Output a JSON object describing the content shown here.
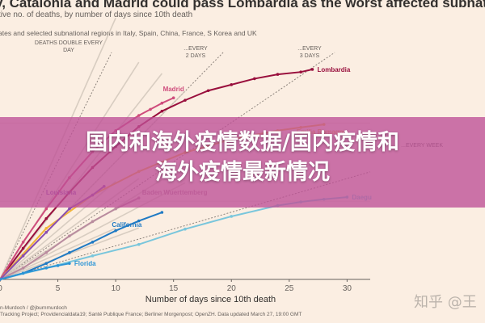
{
  "header": {
    "title": "y, Catalonia and Madrid could pass Lombardia as the worst affected subnational regions",
    "subtitle": "tive no. of deaths, by number of days since 10th death",
    "note": "ates and selected subnational regions in Italy, Spain, China, France, S Korea and UK"
  },
  "overlay": {
    "line1": "国内和海外疫情数据/国内疫情和",
    "line2": "海外疫情最新情况"
  },
  "footer": {
    "credit": "n-Murdoch / @jburnmurdoch",
    "sources": "Tracking Project; Providencialdata19; Santé Publique France; Berliner Morgenpost; OpenZH. Data updated March 27, 19:00 GMT"
  },
  "watermark": "知乎 @王",
  "colors": {
    "background": "#fbeee2",
    "lombardia": "#990f3d",
    "madrid": "#cf4c7c",
    "emilia": "#f2b53a",
    "daegu": "#79c6dc",
    "california": "#1f7ac4",
    "louisiana": "#8a4fb0",
    "overlay": "#be5096"
  },
  "chart_data": {
    "type": "line",
    "title": "",
    "xlabel": "Number of days since 10th death",
    "ylabel": "",
    "xlim": [
      0,
      32
    ],
    "xticks": [
      0,
      5,
      10,
      15,
      20,
      25,
      30
    ],
    "ylog": true,
    "ylim": [
      10,
      8000
    ],
    "doubling_guides": [
      {
        "label": "DEATHS DOUBLE EVERY DAY",
        "days": 1
      },
      {
        "label": "...EVERY 2 DAYS",
        "days": 2
      },
      {
        "label": "...EVERY 3 DAYS",
        "days": 3
      },
      {
        "label": "...EVERY WEEK",
        "days": 7
      }
    ],
    "series": [
      {
        "name": "Lombardia",
        "color": "#990f3d",
        "x": [
          0,
          2,
          4,
          6,
          8,
          10,
          12,
          14,
          16,
          18,
          20,
          22,
          24,
          26,
          27
        ],
        "y": [
          10,
          25,
          60,
          130,
          270,
          500,
          900,
          1420,
          1960,
          2600,
          3100,
          3700,
          4200,
          4500,
          4860
        ]
      },
      {
        "name": "Madrid",
        "color": "#cf4c7c",
        "x": [
          0,
          2,
          4,
          6,
          8,
          10,
          12,
          13,
          14,
          15
        ],
        "y": [
          10,
          30,
          80,
          200,
          430,
          800,
          1250,
          1500,
          1800,
          2100
        ]
      },
      {
        "name": "Emilia Romagna",
        "color": "#f2b53a",
        "x": [
          0,
          4,
          8,
          12,
          16,
          20,
          24,
          26,
          28
        ],
        "y": [
          10,
          45,
          120,
          240,
          420,
          620,
          800,
          880,
          960
        ]
      },
      {
        "name": "Daegu",
        "color": "#79c6dc",
        "x": [
          0,
          4,
          8,
          12,
          16,
          20,
          24,
          26,
          28,
          30
        ],
        "y": [
          10,
          14,
          20,
          28,
          44,
          64,
          88,
          98,
          106,
          113
        ]
      },
      {
        "name": "Baden Wuerttemberg",
        "color": "#b98b9e",
        "x": [
          0,
          2,
          4,
          6,
          8,
          10,
          12
        ],
        "y": [
          10,
          14,
          22,
          36,
          55,
          80,
          110
        ]
      },
      {
        "name": "California",
        "color": "#1f7ac4",
        "x": [
          0,
          2,
          4,
          6,
          8,
          10,
          12,
          14
        ],
        "y": [
          10,
          12,
          16,
          22,
          30,
          42,
          56,
          72
        ]
      },
      {
        "name": "Louisiana",
        "color": "#8a4fb0",
        "x": [
          0,
          2,
          4,
          6,
          8,
          9
        ],
        "y": [
          10,
          20,
          40,
          80,
          120,
          155
        ]
      },
      {
        "name": "Florida",
        "color": "#2b95d6",
        "x": [
          0,
          2,
          4,
          5,
          6
        ],
        "y": [
          10,
          12,
          14,
          15,
          16
        ]
      }
    ]
  }
}
